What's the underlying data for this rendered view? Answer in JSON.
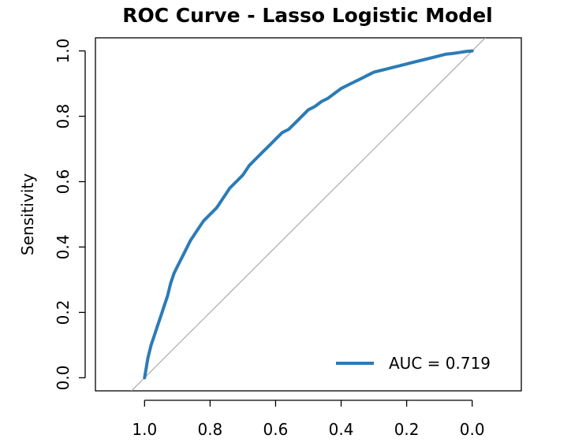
{
  "chart_data": {
    "type": "line",
    "title": "ROC Curve - Lasso Logistic Model",
    "xlabel": "",
    "ylabel": "Sensitivity",
    "x_reversed": true,
    "xlim": [
      1.15,
      -0.15
    ],
    "ylim": [
      -0.04,
      1.04
    ],
    "x_ticks": [
      1.0,
      0.8,
      0.6,
      0.4,
      0.2,
      0.0
    ],
    "x_tick_labels": [
      "1.0",
      "0.8",
      "0.6",
      "0.4",
      "0.2",
      "0.0"
    ],
    "y_ticks": [
      0.0,
      0.2,
      0.4,
      0.6,
      0.8,
      1.0
    ],
    "y_tick_labels": [
      "0.0",
      "0.2",
      "0.4",
      "0.6",
      "0.8",
      "1.0"
    ],
    "grid": false,
    "legend_position": "bottom-right",
    "reference_line": {
      "from": [
        1.0,
        0.0
      ],
      "to": [
        0.0,
        1.0
      ],
      "color": "#aaaaaa"
    },
    "series": [
      {
        "name": "AUC = 0.719",
        "color": "#2c7bb6",
        "x": [
          1.0,
          0.995,
          0.99,
          0.98,
          0.97,
          0.96,
          0.95,
          0.94,
          0.93,
          0.92,
          0.91,
          0.9,
          0.88,
          0.86,
          0.84,
          0.82,
          0.8,
          0.78,
          0.76,
          0.74,
          0.72,
          0.7,
          0.68,
          0.66,
          0.64,
          0.62,
          0.6,
          0.58,
          0.56,
          0.54,
          0.52,
          0.5,
          0.48,
          0.46,
          0.44,
          0.42,
          0.4,
          0.38,
          0.36,
          0.34,
          0.32,
          0.3,
          0.28,
          0.26,
          0.24,
          0.22,
          0.2,
          0.18,
          0.16,
          0.14,
          0.12,
          0.1,
          0.08,
          0.06,
          0.04,
          0.02,
          0.0
        ],
        "y": [
          0.0,
          0.03,
          0.06,
          0.1,
          0.13,
          0.16,
          0.19,
          0.22,
          0.25,
          0.29,
          0.32,
          0.34,
          0.38,
          0.42,
          0.45,
          0.48,
          0.5,
          0.52,
          0.55,
          0.58,
          0.6,
          0.62,
          0.65,
          0.67,
          0.69,
          0.71,
          0.73,
          0.75,
          0.76,
          0.78,
          0.8,
          0.82,
          0.83,
          0.845,
          0.855,
          0.87,
          0.885,
          0.895,
          0.905,
          0.915,
          0.925,
          0.935,
          0.94,
          0.945,
          0.95,
          0.955,
          0.96,
          0.965,
          0.97,
          0.975,
          0.98,
          0.985,
          0.99,
          0.992,
          0.995,
          0.998,
          1.0
        ]
      }
    ]
  }
}
